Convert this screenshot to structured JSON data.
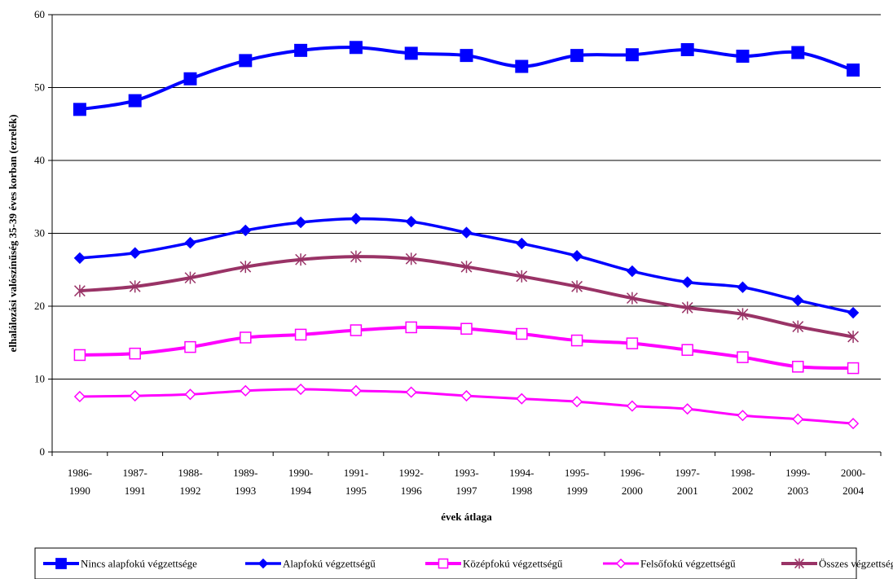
{
  "chart_data": {
    "type": "line",
    "title": "",
    "xlabel": "évek átlaga",
    "ylabel": "elhalálozási valószínűség 35-39 éves korban (ezrelék)",
    "ylim": [
      0,
      60
    ],
    "yticks": [
      0,
      10,
      20,
      30,
      40,
      50,
      60
    ],
    "grid": true,
    "legend_position": "bottom",
    "categories": [
      [
        "1986-",
        "1990"
      ],
      [
        "1987-",
        "1991"
      ],
      [
        "1988-",
        "1992"
      ],
      [
        "1989-",
        "1993"
      ],
      [
        "1990-",
        "1994"
      ],
      [
        "1991-",
        "1995"
      ],
      [
        "1992-",
        "1996"
      ],
      [
        "1993-",
        "1997"
      ],
      [
        "1994-",
        "1998"
      ],
      [
        "1995-",
        "1999"
      ],
      [
        "1996-",
        "2000"
      ],
      [
        "1997-",
        "2001"
      ],
      [
        "1998-",
        "2002"
      ],
      [
        "1999-",
        "2003"
      ],
      [
        "2000-",
        "2004"
      ]
    ],
    "series": [
      {
        "name": "Nincs alapfokú végzettsége",
        "color": "#0000FF",
        "marker": "filled-square",
        "values": [
          47.0,
          48.2,
          51.2,
          53.7,
          55.1,
          55.5,
          54.7,
          54.4,
          52.9,
          54.4,
          54.5,
          55.2,
          54.3,
          54.8,
          52.4
        ]
      },
      {
        "name": "Alapfokú végzettségű",
        "color": "#0000FF",
        "marker": "filled-diamond",
        "values": [
          26.6,
          27.3,
          28.7,
          30.4,
          31.5,
          32.0,
          31.6,
          30.1,
          28.6,
          26.9,
          24.8,
          23.3,
          22.6,
          20.8,
          19.1
        ]
      },
      {
        "name": "Középfokú végzettségű",
        "color": "#FF00FF",
        "marker": "open-square",
        "values": [
          13.3,
          13.5,
          14.4,
          15.7,
          16.1,
          16.7,
          17.1,
          16.9,
          16.2,
          15.3,
          14.9,
          14.0,
          13.0,
          11.7,
          11.5
        ]
      },
      {
        "name": "Felsőfokú végzettségű",
        "color": "#FF00FF",
        "marker": "open-diamond",
        "values": [
          7.6,
          7.7,
          7.9,
          8.4,
          8.6,
          8.4,
          8.2,
          7.7,
          7.3,
          6.9,
          6.3,
          5.9,
          5.0,
          4.5,
          3.9
        ]
      },
      {
        "name": "Összes végzettség",
        "color": "#993366",
        "marker": "asterisk",
        "values": [
          22.1,
          22.7,
          23.9,
          25.4,
          26.4,
          26.8,
          26.5,
          25.4,
          24.1,
          22.7,
          21.1,
          19.8,
          18.9,
          17.2,
          15.8
        ]
      }
    ]
  }
}
